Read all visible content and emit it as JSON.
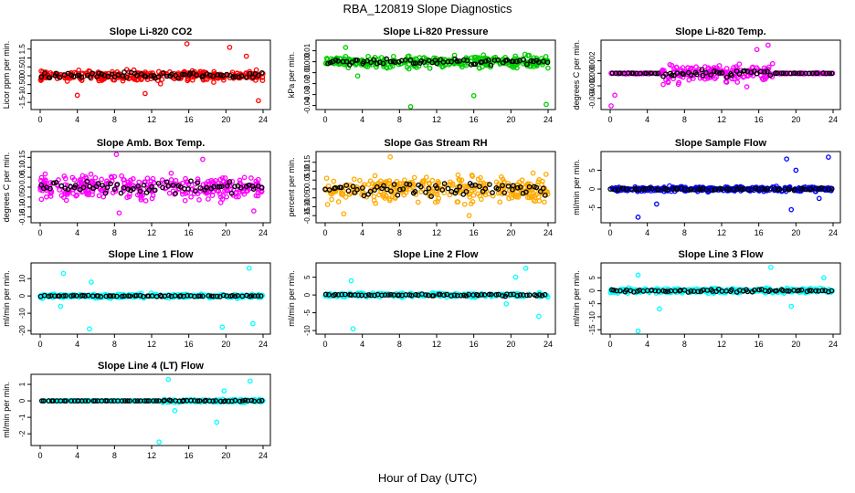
{
  "figure": {
    "title": "RBA_120819  Slope Diagnostics",
    "xlabel": "Hour of Day (UTC)"
  },
  "chart_data": [
    {
      "type": "scatter",
      "title": "Slope Li-820 CO2",
      "ylabel": "Licor ppm per min.",
      "color": "#ff0000",
      "xlim": [
        0,
        24
      ],
      "x_ticks": [
        0,
        4,
        8,
        12,
        16,
        20,
        24
      ],
      "ylim": [
        -1.8,
        1.9
      ],
      "y_ticks": [
        -1.5,
        -1.0,
        -0.5,
        0.0,
        0.5,
        1.0,
        1.5
      ],
      "spread": 0.35,
      "spread_black": 0.25,
      "outliers": [
        [
          15.8,
          1.8
        ],
        [
          20.4,
          1.6
        ],
        [
          22.2,
          1.1
        ],
        [
          23.5,
          -1.4
        ],
        [
          4.0,
          -1.1
        ],
        [
          11.3,
          -1.0
        ]
      ]
    },
    {
      "type": "scatter",
      "title": "Slope Li-820 Pressure",
      "ylabel": "kPa per min.",
      "color": "#00cc00",
      "xlim": [
        0,
        24
      ],
      "x_ticks": [
        0,
        4,
        8,
        12,
        16,
        20,
        24
      ],
      "ylim": [
        -0.042,
        0.018
      ],
      "y_ticks": [
        -0.04,
        -0.03,
        -0.02,
        -0.01,
        0.0,
        0.01
      ],
      "spread": 0.006,
      "spread_black": 0.004,
      "outliers": [
        [
          9.2,
          -0.041
        ],
        [
          16.0,
          -0.031
        ],
        [
          23.8,
          -0.039
        ],
        [
          2.2,
          0.013
        ],
        [
          3.5,
          -0.013
        ]
      ]
    },
    {
      "type": "scatter",
      "title": "Slope Li-820 Temp.",
      "ylabel": "degrees C per min.",
      "color": "#ff00ff",
      "xlim": [
        0,
        24
      ],
      "x_ticks": [
        0,
        4,
        8,
        12,
        16,
        20,
        24
      ],
      "ylim": [
        -0.0055,
        0.005
      ],
      "y_ticks": [
        -0.004,
        -0.002,
        0.0,
        0.002
      ],
      "spread": 0.0016,
      "spread_black": 0.0008,
      "active_range": [
        5.5,
        17.5
      ],
      "outliers": [
        [
          0.1,
          -0.0052
        ],
        [
          0.5,
          -0.0035
        ],
        [
          17.0,
          0.0045
        ],
        [
          15.8,
          0.0038
        ]
      ]
    },
    {
      "type": "scatter",
      "title": "Slope Amb. Box Temp.",
      "ylabel": "degrees C per min.",
      "color": "#ff00ff",
      "xlim": [
        0,
        24
      ],
      "x_ticks": [
        0,
        4,
        8,
        12,
        16,
        20,
        24
      ],
      "ylim": [
        -0.17,
        0.17
      ],
      "y_ticks": [
        -0.15,
        -0.1,
        -0.05,
        0.0,
        0.05,
        0.1,
        0.15
      ],
      "spread": 0.07,
      "spread_black": 0.04,
      "outliers": [
        [
          8.2,
          0.165
        ],
        [
          8.5,
          -0.13
        ],
        [
          17.5,
          0.14
        ],
        [
          23.0,
          -0.12
        ]
      ]
    },
    {
      "type": "scatter",
      "title": "Slope Gas Stream RH",
      "ylabel": "percent per min.",
      "color": "#ffaa00",
      "xlim": [
        0,
        24
      ],
      "x_ticks": [
        0,
        4,
        8,
        12,
        16,
        20,
        24
      ],
      "ylim": [
        -0.18,
        0.2
      ],
      "y_ticks": [
        -0.15,
        -0.1,
        -0.05,
        0.0,
        0.05,
        0.1,
        0.15
      ],
      "spread": 0.08,
      "spread_black": 0.05,
      "outliers": [
        [
          7.0,
          0.18
        ],
        [
          15.5,
          -0.15
        ],
        [
          2.0,
          -0.14
        ]
      ]
    },
    {
      "type": "scatter",
      "title": "Slope Sample Flow",
      "ylabel": "ml/min per min.",
      "color": "#0000ff",
      "xlim": [
        0,
        24
      ],
      "x_ticks": [
        0,
        4,
        8,
        12,
        16,
        20,
        24
      ],
      "ylim": [
        -8.5,
        9.5
      ],
      "y_ticks": [
        -5,
        0,
        5
      ],
      "spread": 0.7,
      "spread_black": 0.5,
      "outliers": [
        [
          3.0,
          -7.5
        ],
        [
          5.0,
          -4.0
        ],
        [
          19.0,
          8.0
        ],
        [
          23.5,
          8.5
        ],
        [
          20.0,
          5.0
        ],
        [
          19.5,
          -5.5
        ],
        [
          22.5,
          -2.5
        ]
      ]
    },
    {
      "type": "scatter",
      "title": "Slope Line 1 Flow",
      "ylabel": "ml/min per min.",
      "color": "#00ffff",
      "xlim": [
        0,
        24
      ],
      "x_ticks": [
        0,
        4,
        8,
        12,
        16,
        20,
        24
      ],
      "ylim": [
        -21,
        18
      ],
      "y_ticks": [
        -20,
        -10,
        0,
        10
      ],
      "spread": 1.2,
      "spread_black": 0.5,
      "outliers": [
        [
          2.5,
          13
        ],
        [
          2.2,
          -6
        ],
        [
          5.3,
          -19
        ],
        [
          22.5,
          16
        ],
        [
          22.9,
          -16
        ],
        [
          19.6,
          -18
        ],
        [
          5.5,
          8
        ]
      ]
    },
    {
      "type": "scatter",
      "title": "Slope Line 2 Flow",
      "ylabel": "ml/min per min.",
      "color": "#00ffff",
      "xlim": [
        0,
        24
      ],
      "x_ticks": [
        0,
        4,
        8,
        12,
        16,
        20,
        24
      ],
      "ylim": [
        -10.5,
        8.5
      ],
      "y_ticks": [
        -10,
        -5,
        0,
        5
      ],
      "spread": 0.6,
      "spread_black": 0.4,
      "outliers": [
        [
          3.0,
          -9.5
        ],
        [
          2.8,
          4.0
        ],
        [
          23.0,
          -6.0
        ],
        [
          21.6,
          7.5
        ],
        [
          20.5,
          5.0
        ],
        [
          19.5,
          -2.5
        ]
      ]
    },
    {
      "type": "scatter",
      "title": "Slope Line 3 Flow",
      "ylabel": "ml/min per min.",
      "color": "#00ffff",
      "xlim": [
        0,
        24
      ],
      "x_ticks": [
        0,
        4,
        8,
        12,
        16,
        20,
        24
      ],
      "ylim": [
        -16,
        10
      ],
      "y_ticks": [
        -15,
        -10,
        -5,
        0,
        5
      ],
      "spread": 1.0,
      "spread_black": 0.6,
      "outliers": [
        [
          3.0,
          -15.5
        ],
        [
          5.3,
          -7.0
        ],
        [
          17.3,
          9.0
        ],
        [
          19.5,
          -6.0
        ],
        [
          23.0,
          5.0
        ],
        [
          3.0,
          6.0
        ]
      ]
    },
    {
      "type": "scatter",
      "title": "Slope Line 4 (LT) Flow",
      "ylabel": "ml/min per min.",
      "color": "#00ffff",
      "xlim": [
        0,
        24
      ],
      "x_ticks": [
        0,
        4,
        8,
        12,
        16,
        20,
        24
      ],
      "ylim": [
        -2.6,
        1.5
      ],
      "y_ticks": [
        -2,
        -1,
        0,
        1
      ],
      "spread": 0.12,
      "spread_black": 0.06,
      "active_range": [
        13.0,
        24.0
      ],
      "outliers": [
        [
          12.8,
          -2.5
        ],
        [
          13.8,
          1.3
        ],
        [
          19.0,
          -1.3
        ],
        [
          22.6,
          1.2
        ],
        [
          19.8,
          0.6
        ],
        [
          14.5,
          -0.6
        ]
      ]
    }
  ]
}
